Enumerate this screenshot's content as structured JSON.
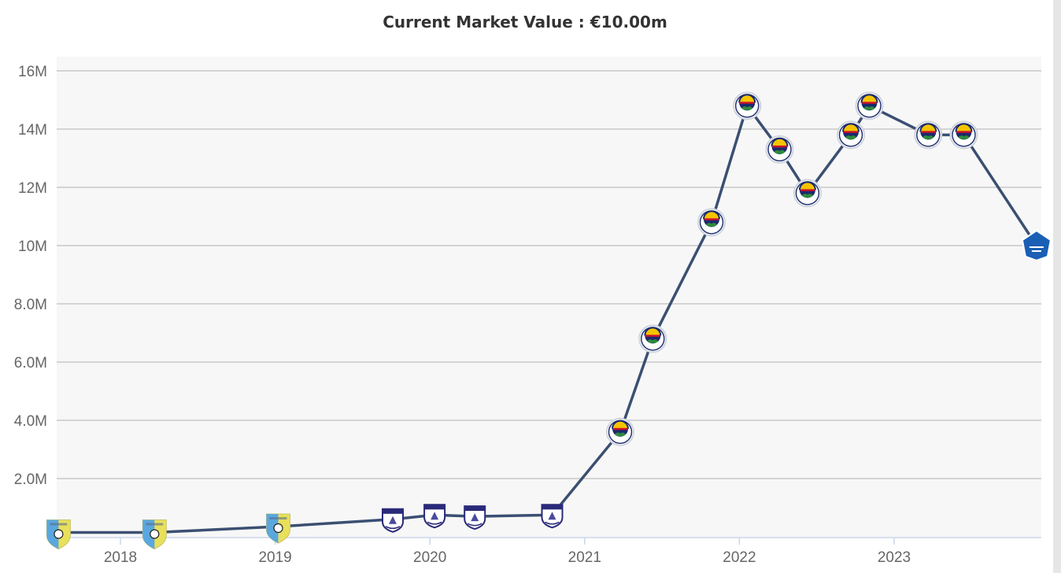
{
  "chart_data": {
    "type": "line",
    "title": "Current Market Value : €10.00m",
    "xlabel": "",
    "ylabel": "",
    "xlim": [
      2017.57,
      2023.96
    ],
    "ylim": [
      0,
      16
    ],
    "y_ticks": [
      {
        "value": 2,
        "label": "2.0M"
      },
      {
        "value": 4,
        "label": "4.0M"
      },
      {
        "value": 6,
        "label": "6.0M"
      },
      {
        "value": 8,
        "label": "8.0M"
      },
      {
        "value": 10,
        "label": "10M"
      },
      {
        "value": 12,
        "label": "12M"
      },
      {
        "value": 14,
        "label": "14M"
      },
      {
        "value": 16,
        "label": "16M"
      }
    ],
    "x_ticks": [
      {
        "value": 2018,
        "label": "2018"
      },
      {
        "value": 2019,
        "label": "2019"
      },
      {
        "value": 2020,
        "label": "2020"
      },
      {
        "value": 2021,
        "label": "2021"
      },
      {
        "value": 2022,
        "label": "2022"
      },
      {
        "value": 2023,
        "label": "2023"
      }
    ],
    "grid": true,
    "legend": "none",
    "line_color": "#3b4f72",
    "plot_background": "#f7f7f7",
    "series": [
      {
        "points": [
          {
            "x": 2017.6,
            "y": 0.15,
            "club_icon": "shield-yellow-blue-icon"
          },
          {
            "x": 2018.22,
            "y": 0.15,
            "club_icon": "shield-yellow-blue-icon"
          },
          {
            "x": 2019.02,
            "y": 0.35,
            "club_icon": "shield-yellow-blue-icon"
          },
          {
            "x": 2019.76,
            "y": 0.6,
            "club_icon": "shield-navy-crest-icon"
          },
          {
            "x": 2020.03,
            "y": 0.75,
            "club_icon": "shield-navy-crest-icon"
          },
          {
            "x": 2020.29,
            "y": 0.7,
            "club_icon": "shield-navy-crest-icon"
          },
          {
            "x": 2020.79,
            "y": 0.75,
            "club_icon": "shield-navy-crest-icon"
          },
          {
            "x": 2021.23,
            "y": 3.6,
            "club_icon": "fenerbahce-crest-icon"
          },
          {
            "x": 2021.44,
            "y": 6.8,
            "club_icon": "fenerbahce-crest-icon"
          },
          {
            "x": 2021.82,
            "y": 10.8,
            "club_icon": "fenerbahce-crest-icon"
          },
          {
            "x": 2022.05,
            "y": 14.8,
            "club_icon": "fenerbahce-crest-icon"
          },
          {
            "x": 2022.26,
            "y": 13.3,
            "club_icon": "fenerbahce-crest-icon"
          },
          {
            "x": 2022.44,
            "y": 11.8,
            "club_icon": "fenerbahce-crest-icon"
          },
          {
            "x": 2022.72,
            "y": 13.8,
            "club_icon": "fenerbahce-crest-icon"
          },
          {
            "x": 2022.84,
            "y": 14.8,
            "club_icon": "fenerbahce-crest-icon"
          },
          {
            "x": 2023.22,
            "y": 13.8,
            "club_icon": "fenerbahce-crest-icon"
          },
          {
            "x": 2023.45,
            "y": 13.8,
            "club_icon": "fenerbahce-crest-icon"
          },
          {
            "x": 2023.92,
            "y": 10.0,
            "club_icon": "hoffenheim-crest-icon"
          }
        ]
      }
    ]
  }
}
